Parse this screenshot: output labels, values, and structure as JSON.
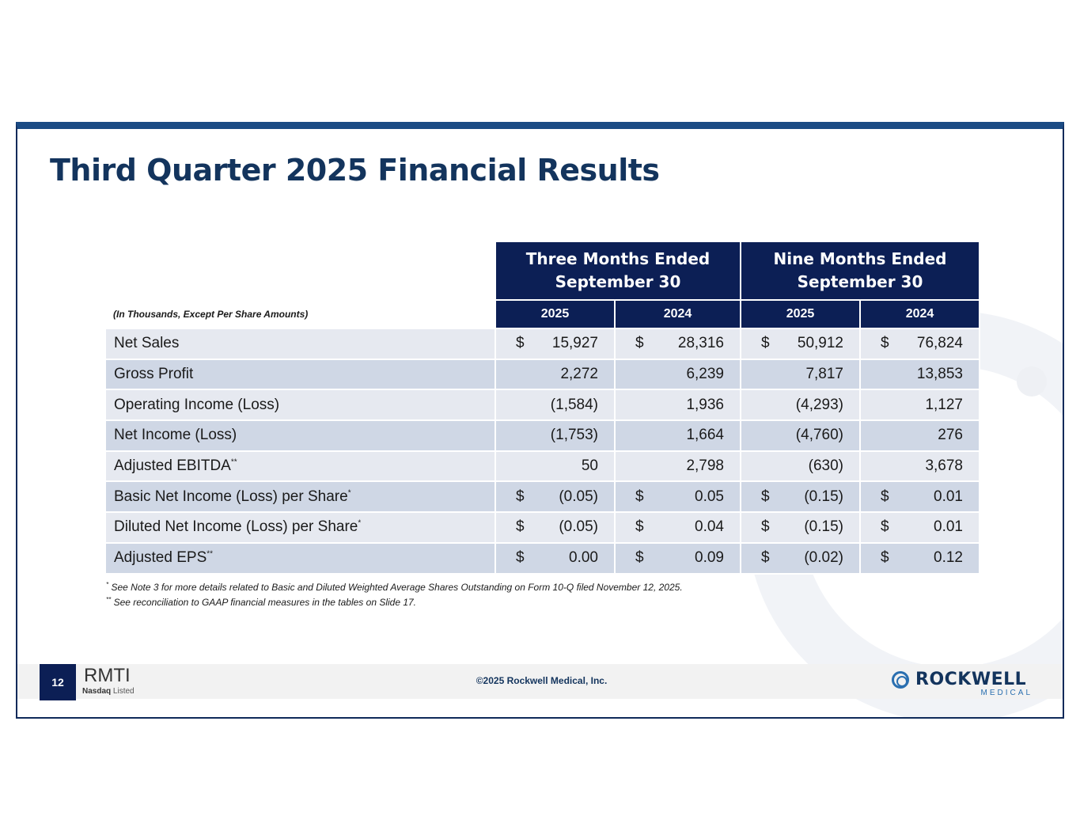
{
  "slide": {
    "title": "Third Quarter 2025 Financial Results",
    "units_note": "(In Thousands, Except Per Share Amounts)"
  },
  "table": {
    "group_headers": [
      {
        "line1": "Three Months Ended",
        "line2": "September 30"
      },
      {
        "line1": "Nine Months Ended",
        "line2": "September 30"
      }
    ],
    "years": [
      "2025",
      "2024",
      "2025",
      "2024"
    ],
    "rows": [
      {
        "label": "Net Sales",
        "note": "",
        "cells": [
          {
            "cur": "$",
            "val": "15,927"
          },
          {
            "cur": "$",
            "val": "28,316"
          },
          {
            "cur": "$",
            "val": "50,912"
          },
          {
            "cur": "$",
            "val": "76,824"
          }
        ]
      },
      {
        "label": "Gross Profit",
        "note": "",
        "cells": [
          {
            "cur": "",
            "val": "2,272"
          },
          {
            "cur": "",
            "val": "6,239"
          },
          {
            "cur": "",
            "val": "7,817"
          },
          {
            "cur": "",
            "val": "13,853"
          }
        ]
      },
      {
        "label": "Operating Income (Loss)",
        "note": "",
        "cells": [
          {
            "cur": "",
            "val": "(1,584)"
          },
          {
            "cur": "",
            "val": "1,936"
          },
          {
            "cur": "",
            "val": "(4,293)"
          },
          {
            "cur": "",
            "val": "1,127"
          }
        ]
      },
      {
        "label": "Net Income (Loss)",
        "note": "",
        "cells": [
          {
            "cur": "",
            "val": "(1,753)"
          },
          {
            "cur": "",
            "val": "1,664"
          },
          {
            "cur": "",
            "val": "(4,760)"
          },
          {
            "cur": "",
            "val": "276"
          }
        ]
      },
      {
        "label": "Adjusted EBITDA",
        "note": "**",
        "cells": [
          {
            "cur": "",
            "val": "50"
          },
          {
            "cur": "",
            "val": "2,798"
          },
          {
            "cur": "",
            "val": "(630)"
          },
          {
            "cur": "",
            "val": "3,678"
          }
        ]
      },
      {
        "label": "Basic Net Income (Loss) per Share",
        "note": "*",
        "cells": [
          {
            "cur": "$",
            "val": "(0.05)"
          },
          {
            "cur": "$",
            "val": "0.05"
          },
          {
            "cur": "$",
            "val": "(0.15)"
          },
          {
            "cur": "$",
            "val": "0.01"
          }
        ]
      },
      {
        "label": "Diluted Net Income (Loss) per Share",
        "note": "*",
        "cells": [
          {
            "cur": "$",
            "val": "(0.05)"
          },
          {
            "cur": "$",
            "val": "0.04"
          },
          {
            "cur": "$",
            "val": "(0.15)"
          },
          {
            "cur": "$",
            "val": "0.01"
          }
        ]
      },
      {
        "label": "Adjusted EPS",
        "note": "**",
        "cells": [
          {
            "cur": "$",
            "val": "0.00"
          },
          {
            "cur": "$",
            "val": "0.09"
          },
          {
            "cur": "$",
            "val": "(0.02)"
          },
          {
            "cur": "$",
            "val": "0.12"
          }
        ]
      }
    ]
  },
  "footnotes": [
    {
      "mark": "*",
      "text": "See Note 3 for more details related to Basic and Diluted Weighted Average Shares Outstanding on Form 10-Q filed November 12, 2025."
    },
    {
      "mark": "**",
      "text": "See reconciliation to GAAP financial measures in the tables on Slide 17."
    }
  ],
  "footer": {
    "page_number": "12",
    "ticker": "RMTI",
    "exchange_bold": "Nasdaq",
    "exchange_rest": "Listed",
    "copyright": "©2025 Rockwell Medical, Inc.",
    "logo_word": "ROCKWELL",
    "logo_sub": "MEDICAL"
  },
  "colors": {
    "navy": "#0c1f55",
    "title": "#13345d",
    "row_light": "#e6e9f0",
    "row_dark": "#cfd7e5",
    "accent_blue": "#2a6fb0"
  }
}
